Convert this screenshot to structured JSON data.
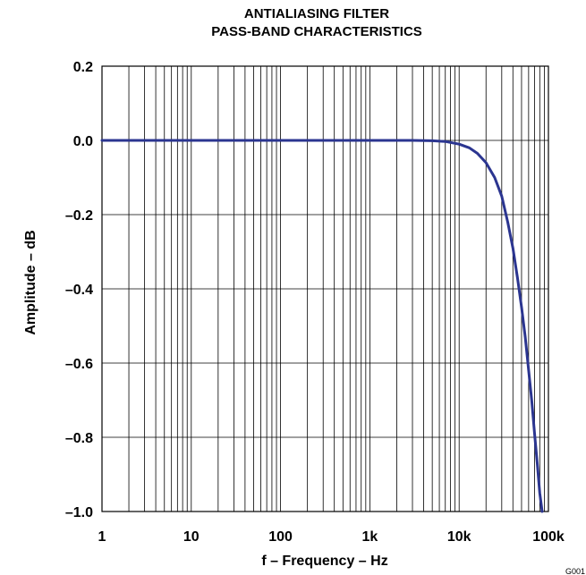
{
  "chart_data": {
    "type": "line",
    "title": "ANTIALIASING FILTER",
    "subtitle": "PASS-BAND CHARACTERISTICS",
    "xlabel": "f – Frequency – Hz",
    "ylabel": "Amplitude – dB",
    "xscale": "log",
    "xlim": [
      1,
      100000
    ],
    "ylim": [
      -1.0,
      0.2
    ],
    "grid": true,
    "x_ticks": [
      {
        "value": 1,
        "label": "1"
      },
      {
        "value": 10,
        "label": "10"
      },
      {
        "value": 100,
        "label": "100"
      },
      {
        "value": 1000,
        "label": "1k"
      },
      {
        "value": 10000,
        "label": "10k"
      },
      {
        "value": 100000,
        "label": "100k"
      }
    ],
    "y_ticks": [
      {
        "value": 0.2,
        "label": "0.2"
      },
      {
        "value": 0.0,
        "label": "0.0"
      },
      {
        "value": -0.2,
        "label": "–0.2"
      },
      {
        "value": -0.4,
        "label": "–0.4"
      },
      {
        "value": -0.6,
        "label": "–0.6"
      },
      {
        "value": -0.8,
        "label": "–0.8"
      },
      {
        "value": -1.0,
        "label": "–1.0"
      }
    ],
    "series": [
      {
        "color": "#2b3590",
        "x": [
          1,
          10,
          100,
          1000,
          3000,
          5000,
          7000,
          10000,
          13000,
          16000,
          20000,
          25000,
          30000,
          35000,
          40000,
          45000,
          50000,
          55000,
          60000,
          65000,
          70000,
          75000,
          80000,
          85000
        ],
        "values": [
          0.0,
          0.0,
          0.0,
          0.0,
          0.0,
          -0.001,
          -0.003,
          -0.01,
          -0.02,
          -0.035,
          -0.06,
          -0.1,
          -0.15,
          -0.22,
          -0.29,
          -0.37,
          -0.45,
          -0.53,
          -0.62,
          -0.7,
          -0.79,
          -0.87,
          -0.95,
          -1.0
        ]
      }
    ],
    "figure_code": "G001"
  }
}
